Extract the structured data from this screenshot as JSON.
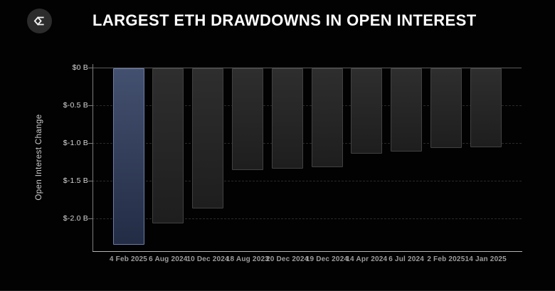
{
  "header": {
    "title": "LARGEST ETH DRAWDOWNS IN OPEN INTEREST",
    "logo_icon": "sigma-diamond-icon"
  },
  "colors": {
    "background": "#020202",
    "title_text": "#ffffff",
    "logo_bg": "#2c2c2c",
    "logo_glyph": "#f2f2f2",
    "highlight_bar_top": "#43506f",
    "highlight_bar_bottom": "#232c45",
    "highlight_bar_border": "#6d7da8",
    "bar_top": "#2e2e2e",
    "bar_bottom": "#1e1e1e",
    "bar_border": "#414141",
    "zero_line": "#5b5b5b",
    "gridline": "#2a2a2a",
    "y_axis_line": "#7d7d7d",
    "x_axis_line": "#b5b5b5",
    "tick_label": "#d8d8d8",
    "date_label": "#9c9c9c",
    "axis_title": "#cfcfcf"
  },
  "chart_data": {
    "type": "bar",
    "title": "LARGEST ETH DRAWDOWNS IN OPEN INTEREST",
    "ylabel": "Open Interest Change",
    "xlabel": "",
    "unit": "$ billions",
    "categories": [
      "4 Feb 2025",
      "6 Aug 2024",
      "10 Dec 2024",
      "18 Aug 2023",
      "20 Dec 2024",
      "19 Dec 2024",
      "14 Apr 2024",
      "6 Jul 2024",
      "2 Feb 2025",
      "14 Jan 2025"
    ],
    "values": [
      -2.34,
      -2.06,
      -1.86,
      -1.35,
      -1.33,
      -1.31,
      -1.13,
      -1.1,
      -1.06,
      -1.05
    ],
    "highlight_index": 0,
    "ylim": [
      -2.45,
      0
    ],
    "yticks": [
      {
        "value": 0,
        "label": "$0 B"
      },
      {
        "value": -0.5,
        "label": "$-0.5 B"
      },
      {
        "value": -1.0,
        "label": "$-1.0 B"
      },
      {
        "value": -1.5,
        "label": "$-1.5 B"
      },
      {
        "value": -2.0,
        "label": "$-2.0 B"
      }
    ],
    "grid": "horizontal-dashed",
    "legend": "none"
  }
}
